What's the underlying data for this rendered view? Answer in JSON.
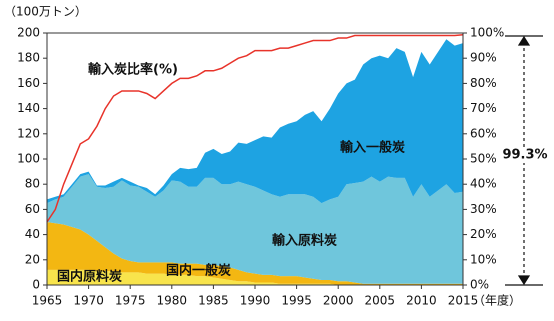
{
  "chart_data": {
    "type": "stacked_area",
    "y_label": "（100万トン）",
    "x_label": "（年度）",
    "annotation": "99.3%",
    "x": [
      1965,
      1966,
      1967,
      1968,
      1969,
      1970,
      1971,
      1972,
      1973,
      1974,
      1975,
      1976,
      1977,
      1978,
      1979,
      1980,
      1981,
      1982,
      1983,
      1984,
      1985,
      1986,
      1987,
      1988,
      1989,
      1990,
      1991,
      1992,
      1993,
      1994,
      1995,
      1996,
      1997,
      1998,
      1999,
      2000,
      2001,
      2002,
      2003,
      2004,
      2005,
      2006,
      2007,
      2008,
      2009,
      2010,
      2011,
      2012,
      2013,
      2014,
      2015
    ],
    "xlim": [
      1965,
      2015
    ],
    "xticks": [
      1965,
      1970,
      1975,
      1980,
      1985,
      1990,
      1995,
      2000,
      2005,
      2010,
      2015
    ],
    "ylim": [
      0,
      200
    ],
    "yticks": [
      0,
      20,
      40,
      60,
      80,
      100,
      120,
      140,
      160,
      180,
      200
    ],
    "y2lim": [
      0,
      100
    ],
    "y2ticks": [
      {
        "value": 0,
        "label": "0%"
      },
      {
        "value": 10,
        "label": "10%"
      },
      {
        "value": 20,
        "label": "20%"
      },
      {
        "value": 30,
        "label": "30%"
      },
      {
        "value": 40,
        "label": "40%"
      },
      {
        "value": 50,
        "label": "50%"
      },
      {
        "value": 60,
        "label": "60%"
      },
      {
        "value": 70,
        "label": "70%"
      },
      {
        "value": 80,
        "label": "80%"
      },
      {
        "value": 90,
        "label": "90%"
      },
      {
        "value": 100,
        "label": "100%"
      }
    ],
    "grid": false,
    "series": [
      {
        "name": "国内原料炭",
        "color": "#f8e44c",
        "values": [
          12,
          12,
          12,
          12,
          12,
          12,
          11,
          11,
          11,
          10,
          10,
          10,
          9,
          9,
          9,
          8,
          8,
          8,
          7,
          7,
          6,
          5,
          4,
          3,
          3,
          2,
          2,
          2,
          1,
          1,
          1,
          1,
          1,
          1,
          1,
          0,
          0,
          0,
          0,
          0,
          0,
          0,
          0,
          0,
          0,
          0,
          0,
          0,
          0,
          0,
          0
        ]
      },
      {
        "name": "国内一般炭",
        "color": "#f3b712",
        "values": [
          38,
          37,
          36,
          34,
          32,
          28,
          24,
          19,
          14,
          11,
          9,
          8,
          9,
          9,
          9,
          10,
          9,
          9,
          10,
          9,
          10,
          10,
          10,
          9,
          7,
          7,
          6,
          6,
          6,
          6,
          6,
          5,
          4,
          3,
          3,
          3,
          3,
          2,
          1,
          1,
          1,
          1,
          1,
          1,
          1,
          1,
          1,
          1,
          1,
          1,
          1
        ]
      },
      {
        "name": "輸入原料炭",
        "color": "#6fc6dc",
        "values": [
          15,
          19,
          22,
          32,
          42,
          48,
          43,
          47,
          53,
          62,
          60,
          60,
          56,
          52,
          57,
          65,
          65,
          61,
          61,
          69,
          69,
          65,
          66,
          70,
          70,
          69,
          67,
          64,
          63,
          65,
          65,
          66,
          65,
          61,
          64,
          67,
          77,
          79,
          81,
          85,
          81,
          85,
          84,
          84,
          69,
          79,
          69,
          74,
          79,
          72,
          73
        ]
      },
      {
        "name": "輸入一般炭",
        "color": "#1ea3e2",
        "values": [
          3,
          2,
          2,
          2,
          2,
          2,
          1,
          2,
          4,
          2,
          3,
          1,
          3,
          2,
          4,
          5,
          11,
          14,
          15,
          20,
          23,
          24,
          26,
          31,
          32,
          37,
          43,
          45,
          55,
          56,
          58,
          63,
          68,
          65,
          72,
          82,
          80,
          82,
          93,
          94,
          100,
          94,
          103,
          100,
          95,
          105,
          105,
          110,
          115,
          117,
          118
        ]
      },
      {
        "name": "輸入炭比率(%)",
        "color": "#e8332a",
        "axis": "y2",
        "type": "line",
        "values": [
          25,
          30,
          40,
          48,
          56,
          58,
          63,
          70,
          75,
          77,
          77,
          77,
          76,
          74,
          77,
          80,
          82,
          82,
          83,
          85,
          85,
          86,
          88,
          90,
          91,
          93,
          93,
          93,
          94,
          94,
          95,
          96,
          97,
          97,
          97,
          98,
          98,
          99,
          99,
          99,
          99,
          99,
          99,
          99,
          99,
          99,
          99,
          99,
          99,
          99,
          99.3
        ]
      }
    ]
  }
}
